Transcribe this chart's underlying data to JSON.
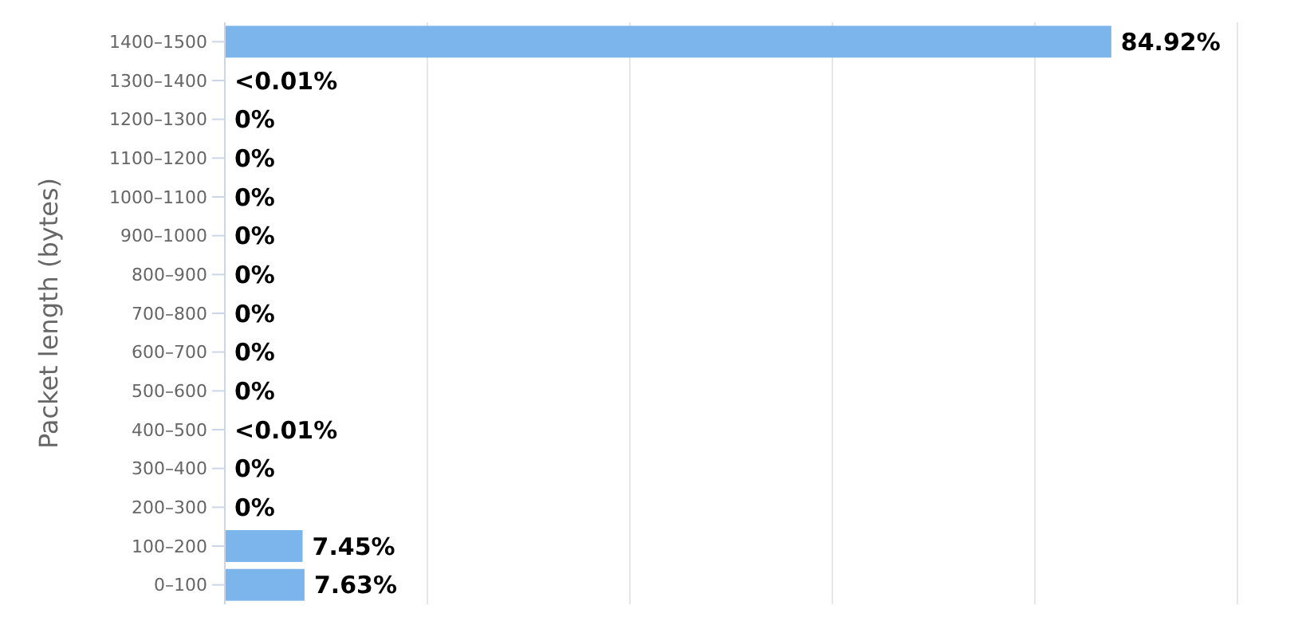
{
  "chart_data": {
    "type": "bar",
    "orientation": "horizontal",
    "ylabel": "Packet length (bytes)",
    "categories": [
      "1400–1500",
      "1300–1400",
      "1200–1300",
      "1100–1200",
      "1000–1100",
      "900–1000",
      "800–900",
      "700–800",
      "600–700",
      "500–600",
      "400–500",
      "300–400",
      "200–300",
      "100–200",
      "0–100"
    ],
    "values": [
      84.92,
      0.005,
      0,
      0,
      0,
      0,
      0,
      0,
      0,
      0,
      0.005,
      0,
      0,
      7.45,
      7.63
    ],
    "value_labels": [
      "84.92%",
      "<0.01%",
      "0%",
      "0%",
      "0%",
      "0%",
      "0%",
      "0%",
      "0%",
      "0%",
      "<0.01%",
      "0%",
      "0%",
      "7.45%",
      "7.63%"
    ],
    "color": "#7cb5ec",
    "xlim": [
      0,
      97
    ],
    "xticks": [
      {
        "value": 0,
        "label": null
      },
      {
        "value": 19.4,
        "label": null
      },
      {
        "value": 38.8,
        "label": null
      },
      {
        "value": 58.2,
        "label": null
      },
      {
        "value": 77.6,
        "label": null
      },
      {
        "value": 97,
        "label": null
      }
    ],
    "grid": "x",
    "tick_labels": "y"
  }
}
